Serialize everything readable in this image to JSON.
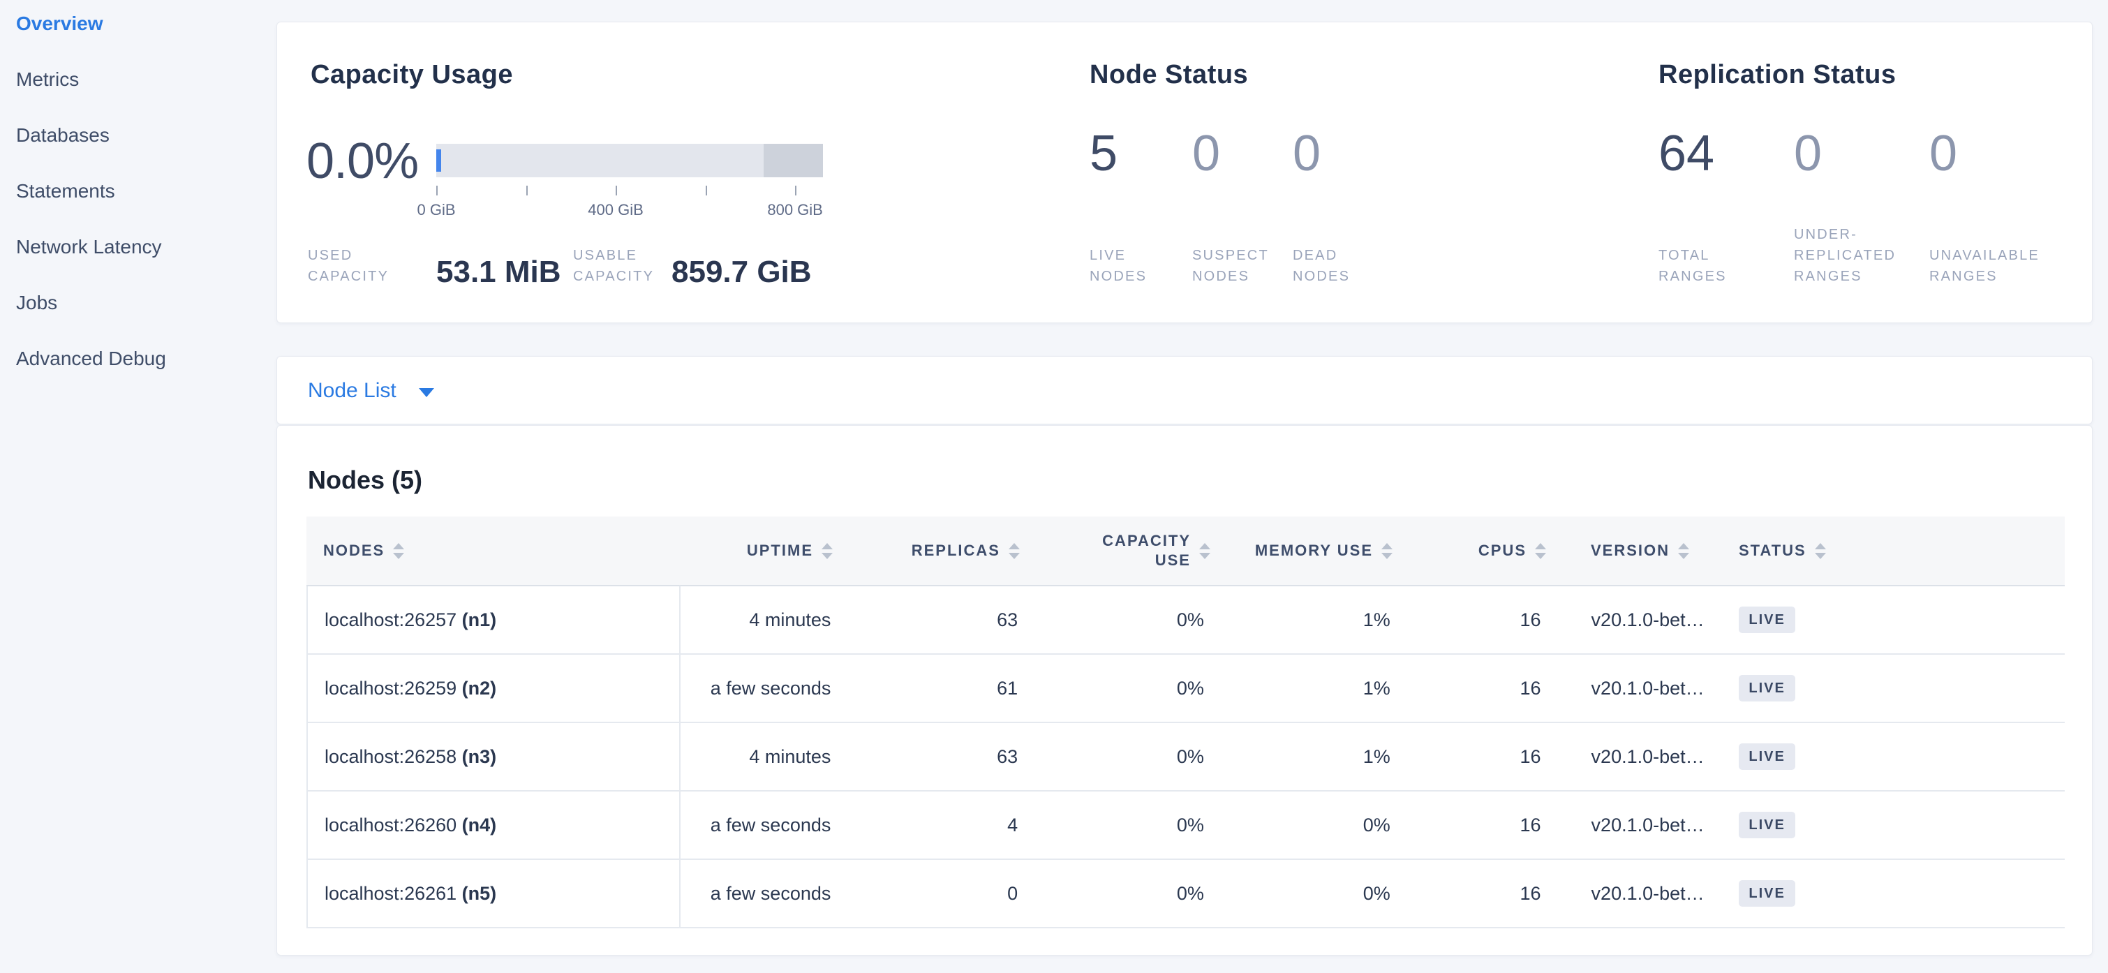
{
  "sidebar": {
    "items": [
      {
        "label": "Overview",
        "active": true
      },
      {
        "label": "Metrics",
        "active": false
      },
      {
        "label": "Databases",
        "active": false
      },
      {
        "label": "Statements",
        "active": false
      },
      {
        "label": "Network Latency",
        "active": false
      },
      {
        "label": "Jobs",
        "active": false
      },
      {
        "label": "Advanced Debug",
        "active": false
      }
    ]
  },
  "summary": {
    "capacity": {
      "title": "Capacity Usage",
      "percent": "0.0%",
      "gauge": {
        "tick_labels": [
          "0 GiB",
          "",
          "400 GiB",
          "",
          "800 GiB"
        ],
        "ticks_span_pct": 92.8,
        "dark_segment_start_pct": 84.7,
        "used_pct": 0
      },
      "stats": [
        {
          "label_lines": [
            "USED",
            "CAPACITY"
          ],
          "value": "53.1 MiB"
        },
        {
          "label_lines": [
            "USABLE",
            "CAPACITY"
          ],
          "value": "859.7 GiB"
        }
      ]
    },
    "node_status": {
      "title": "Node Status",
      "stats": [
        {
          "value": "5",
          "muted": false,
          "label_lines": [
            "LIVE",
            "NODES"
          ]
        },
        {
          "value": "0",
          "muted": true,
          "label_lines": [
            "SUSPECT",
            "NODES"
          ]
        },
        {
          "value": "0",
          "muted": true,
          "label_lines": [
            "DEAD",
            "NODES"
          ]
        }
      ]
    },
    "replication": {
      "title": "Replication Status",
      "stats": [
        {
          "value": "64",
          "muted": false,
          "label_lines": [
            "TOTAL",
            "RANGES"
          ]
        },
        {
          "value": "0",
          "muted": true,
          "label_lines": [
            "UNDER-",
            "REPLICATED",
            "RANGES"
          ]
        },
        {
          "value": "0",
          "muted": true,
          "label_lines": [
            "UNAVAILABLE",
            "RANGES"
          ]
        }
      ]
    }
  },
  "node_list": {
    "label": "Node List"
  },
  "nodes_panel": {
    "title": "Nodes (5)",
    "columns": [
      {
        "label_lines": [
          "NODES"
        ]
      },
      {
        "label_lines": [
          "UPTIME"
        ]
      },
      {
        "label_lines": [
          "REPLICAS"
        ]
      },
      {
        "label_lines": [
          "CAPACITY",
          "USE"
        ]
      },
      {
        "label_lines": [
          "MEMORY USE"
        ]
      },
      {
        "label_lines": [
          "CPUS"
        ]
      },
      {
        "label_lines": [
          "VERSION"
        ]
      },
      {
        "label_lines": [
          "STATUS"
        ]
      }
    ],
    "rows": [
      {
        "address": "localhost:26257",
        "node_id": "(n1)",
        "uptime": "4 minutes",
        "replicas": "63",
        "capacity_use": "0%",
        "memory_use": "1%",
        "cpus": "16",
        "version": "v20.1.0-bet…",
        "status": "LIVE"
      },
      {
        "address": "localhost:26259",
        "node_id": "(n2)",
        "uptime": "a few seconds",
        "replicas": "61",
        "capacity_use": "0%",
        "memory_use": "1%",
        "cpus": "16",
        "version": "v20.1.0-bet…",
        "status": "LIVE"
      },
      {
        "address": "localhost:26258",
        "node_id": "(n3)",
        "uptime": "4 minutes",
        "replicas": "63",
        "capacity_use": "0%",
        "memory_use": "1%",
        "cpus": "16",
        "version": "v20.1.0-bet…",
        "status": "LIVE"
      },
      {
        "address": "localhost:26260",
        "node_id": "(n4)",
        "uptime": "a few seconds",
        "replicas": "4",
        "capacity_use": "0%",
        "memory_use": "0%",
        "cpus": "16",
        "version": "v20.1.0-bet…",
        "status": "LIVE"
      },
      {
        "address": "localhost:26261",
        "node_id": "(n5)",
        "uptime": "a few seconds",
        "replicas": "0",
        "capacity_use": "0%",
        "memory_use": "0%",
        "cpus": "16",
        "version": "v20.1.0-bet…",
        "status": "LIVE"
      }
    ]
  },
  "colors": {
    "accent_blue": "#2a7ae2",
    "page_background": "#f4f6fa",
    "gauge_light": "#e3e6ed",
    "gauge_dark": "#cdd2db",
    "gauge_used": "#4485ec",
    "badge_background": "#e6e9f1"
  }
}
